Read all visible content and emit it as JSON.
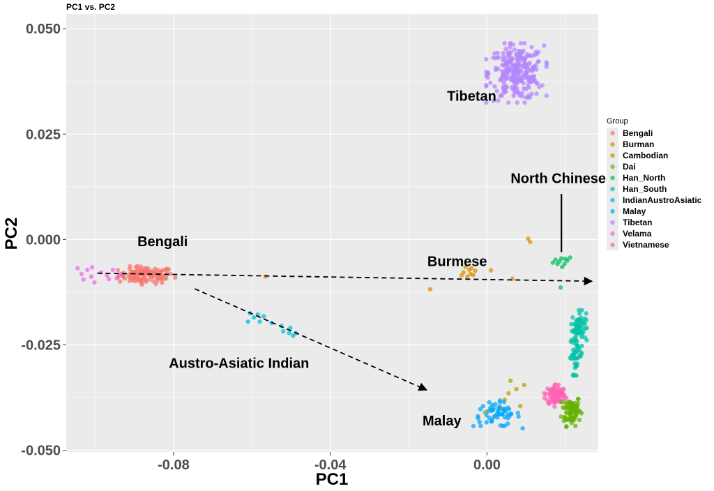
{
  "chart_data": {
    "type": "scatter",
    "title": "PC1 vs. PC2",
    "xlabel": "PC1",
    "ylabel": "PC2",
    "xlim": [
      -0.1074,
      0.0284
    ],
    "ylim": [
      -0.0504,
      0.0535
    ],
    "x_ticks": [
      -0.08,
      -0.04,
      0.0
    ],
    "x_tick_labels": [
      "-0.08",
      "-0.04",
      "0.00"
    ],
    "y_ticks": [
      0.05,
      0.025,
      0.0,
      -0.025,
      -0.05
    ],
    "y_tick_labels": [
      "0.050",
      "0.025",
      "0.000",
      "-0.025",
      "-0.050"
    ],
    "grid": true,
    "legend": {
      "title": "Group",
      "position": "right"
    },
    "series": [
      {
        "name": "Bengali",
        "color": "#F8766D",
        "center": [
          -0.087,
          -0.0085
        ],
        "spread": [
          0.0035,
          0.001
        ],
        "count": 110
      },
      {
        "name": "Burman",
        "color": "#DB8E00",
        "points": [
          [
            -0.0055,
            -0.0065
          ],
          [
            -0.0045,
            -0.0072
          ],
          [
            -0.006,
            -0.0078
          ],
          [
            -0.0042,
            -0.0082
          ],
          [
            -0.005,
            -0.0088
          ],
          [
            -0.0035,
            -0.0084
          ],
          [
            -0.0065,
            -0.0085
          ],
          [
            -0.003,
            -0.0074
          ],
          [
            0.001,
            -0.0073
          ],
          [
            -0.0145,
            -0.0118
          ],
          [
            -0.0565,
            -0.0088
          ],
          [
            0.0105,
            0.0002
          ],
          [
            0.011,
            -0.0006
          ],
          [
            0.0065,
            -0.0093
          ],
          [
            -0.004,
            -0.0068
          ]
        ]
      },
      {
        "name": "Cambodian",
        "color": "#AEA200",
        "points": [
          [
            0.006,
            -0.0335
          ],
          [
            0.0075,
            -0.0355
          ],
          [
            0.0095,
            -0.0345
          ],
          [
            0.0045,
            -0.038
          ],
          [
            0.0085,
            -0.0395
          ],
          [
            0.0035,
            -0.04
          ],
          [
            0.002,
            -0.042
          ],
          [
            -0.0005,
            -0.041
          ],
          [
            0.0055,
            -0.0365
          ],
          [
            0.001,
            -0.0405
          ]
        ]
      },
      {
        "name": "Dai",
        "color": "#64B200",
        "center": [
          0.0215,
          -0.0405
        ],
        "spread": [
          0.0012,
          0.0018
        ],
        "count": 80
      },
      {
        "name": "Han_North",
        "color": "#00BD5C",
        "points": [
          [
            0.0175,
            -0.0048
          ],
          [
            0.0185,
            -0.0052
          ],
          [
            0.019,
            -0.0045
          ],
          [
            0.0198,
            -0.0058
          ],
          [
            0.0205,
            -0.005
          ],
          [
            0.018,
            -0.0058
          ],
          [
            0.0212,
            -0.0043
          ],
          [
            0.0192,
            -0.0065
          ],
          [
            0.0168,
            -0.0055
          ],
          [
            0.02,
            -0.0046
          ],
          [
            0.0188,
            -0.0114
          ]
        ]
      },
      {
        "name": "Han_South",
        "color": "#00C1A7",
        "points_groups": [
          {
            "center": [
              0.0235,
              -0.0205
            ],
            "spread": [
              0.0009,
              0.0017
            ],
            "count": 60
          },
          {
            "center": [
              0.0228,
              -0.0272
            ],
            "spread": [
              0.0008,
              0.0023
            ],
            "count": 45
          }
        ]
      },
      {
        "name": "IndianAustroAsiatic",
        "color": "#00BADE",
        "points": [
          [
            -0.0605,
            -0.0175
          ],
          [
            -0.0595,
            -0.0185
          ],
          [
            -0.0585,
            -0.0178
          ],
          [
            -0.058,
            -0.0195
          ],
          [
            -0.061,
            -0.0195
          ],
          [
            -0.057,
            -0.0182
          ],
          [
            -0.055,
            -0.0198
          ],
          [
            -0.0525,
            -0.0205
          ],
          [
            -0.052,
            -0.0218
          ],
          [
            -0.0505,
            -0.0222
          ],
          [
            -0.0495,
            -0.0228
          ],
          [
            -0.0488,
            -0.0222
          ],
          [
            -0.0502,
            -0.021
          ]
        ]
      },
      {
        "name": "Malay",
        "color": "#00A6FF",
        "center": [
          0.0025,
          -0.0415
        ],
        "spread": [
          0.003,
          0.0015
        ],
        "count": 55
      },
      {
        "name": "Tibetan",
        "color": "#B385FF",
        "center": [
          0.0075,
          0.0395
        ],
        "spread": [
          0.0035,
          0.0032
        ],
        "count": 260
      },
      {
        "name": "Velama",
        "color": "#EF67EB",
        "points": [
          [
            -0.1045,
            -0.0068
          ],
          [
            -0.1035,
            -0.0082
          ],
          [
            -0.103,
            -0.0095
          ],
          [
            -0.102,
            -0.0072
          ],
          [
            -0.101,
            -0.0088
          ],
          [
            -0.1002,
            -0.0102
          ],
          [
            -0.0985,
            -0.0078
          ],
          [
            -0.097,
            -0.0085
          ],
          [
            -0.0955,
            -0.0072
          ],
          [
            -0.0945,
            -0.0092
          ],
          [
            -0.0935,
            -0.0082
          ],
          [
            -0.1008,
            -0.0066
          ],
          [
            -0.0965,
            -0.0094
          ]
        ]
      },
      {
        "name": "Vietnamese",
        "color": "#FF63B6",
        "center": [
          0.0175,
          -0.0368
        ],
        "spread": [
          0.0013,
          0.0013
        ],
        "count": 90
      }
    ],
    "annotations": [
      {
        "text": "Tibetan",
        "x": -0.0039,
        "y": 0.0329
      },
      {
        "text": "North Chinese",
        "x": 0.0182,
        "y": 0.0134
      },
      {
        "text": "Bengali",
        "x": -0.0828,
        "y": -0.0016
      },
      {
        "text": "Burmese",
        "x": -0.0076,
        "y": -0.0063
      },
      {
        "text": "Austro-Asiatic Indian",
        "x": -0.0633,
        "y": -0.0305
      },
      {
        "text": "Malay",
        "x": -0.0115,
        "y": -0.0441
      }
    ],
    "arrows": [
      {
        "from": [
          -0.0995,
          -0.008
        ],
        "to": [
          0.0268,
          -0.0099
        ],
        "dashed": true
      },
      {
        "from": [
          -0.0746,
          -0.0117
        ],
        "to": [
          -0.0154,
          -0.0357
        ],
        "dashed": true
      }
    ],
    "lines": [
      {
        "from": [
          0.019,
          0.0108
        ],
        "to": [
          0.019,
          -0.003
        ]
      }
    ]
  }
}
